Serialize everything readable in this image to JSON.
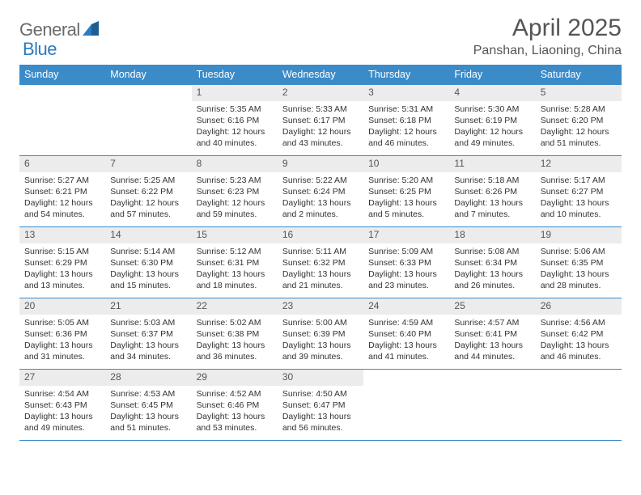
{
  "brand": {
    "word1": "General",
    "word2": "Blue"
  },
  "title": "April 2025",
  "location": "Panshan, Liaoning, China",
  "colors": {
    "header_bg": "#3b8bc9",
    "header_text": "#ffffff",
    "daynum_bg": "#ececec",
    "border": "#3b8bc9",
    "logo_gray": "#6b6b6b",
    "logo_blue": "#2a7bbf"
  },
  "weekdays": [
    "Sunday",
    "Monday",
    "Tuesday",
    "Wednesday",
    "Thursday",
    "Friday",
    "Saturday"
  ],
  "weeks": [
    [
      {
        "n": "",
        "sr": "",
        "ss": "",
        "dl": ""
      },
      {
        "n": "",
        "sr": "",
        "ss": "",
        "dl": ""
      },
      {
        "n": "1",
        "sr": "Sunrise: 5:35 AM",
        "ss": "Sunset: 6:16 PM",
        "dl": "Daylight: 12 hours and 40 minutes."
      },
      {
        "n": "2",
        "sr": "Sunrise: 5:33 AM",
        "ss": "Sunset: 6:17 PM",
        "dl": "Daylight: 12 hours and 43 minutes."
      },
      {
        "n": "3",
        "sr": "Sunrise: 5:31 AM",
        "ss": "Sunset: 6:18 PM",
        "dl": "Daylight: 12 hours and 46 minutes."
      },
      {
        "n": "4",
        "sr": "Sunrise: 5:30 AM",
        "ss": "Sunset: 6:19 PM",
        "dl": "Daylight: 12 hours and 49 minutes."
      },
      {
        "n": "5",
        "sr": "Sunrise: 5:28 AM",
        "ss": "Sunset: 6:20 PM",
        "dl": "Daylight: 12 hours and 51 minutes."
      }
    ],
    [
      {
        "n": "6",
        "sr": "Sunrise: 5:27 AM",
        "ss": "Sunset: 6:21 PM",
        "dl": "Daylight: 12 hours and 54 minutes."
      },
      {
        "n": "7",
        "sr": "Sunrise: 5:25 AM",
        "ss": "Sunset: 6:22 PM",
        "dl": "Daylight: 12 hours and 57 minutes."
      },
      {
        "n": "8",
        "sr": "Sunrise: 5:23 AM",
        "ss": "Sunset: 6:23 PM",
        "dl": "Daylight: 12 hours and 59 minutes."
      },
      {
        "n": "9",
        "sr": "Sunrise: 5:22 AM",
        "ss": "Sunset: 6:24 PM",
        "dl": "Daylight: 13 hours and 2 minutes."
      },
      {
        "n": "10",
        "sr": "Sunrise: 5:20 AM",
        "ss": "Sunset: 6:25 PM",
        "dl": "Daylight: 13 hours and 5 minutes."
      },
      {
        "n": "11",
        "sr": "Sunrise: 5:18 AM",
        "ss": "Sunset: 6:26 PM",
        "dl": "Daylight: 13 hours and 7 minutes."
      },
      {
        "n": "12",
        "sr": "Sunrise: 5:17 AM",
        "ss": "Sunset: 6:27 PM",
        "dl": "Daylight: 13 hours and 10 minutes."
      }
    ],
    [
      {
        "n": "13",
        "sr": "Sunrise: 5:15 AM",
        "ss": "Sunset: 6:29 PM",
        "dl": "Daylight: 13 hours and 13 minutes."
      },
      {
        "n": "14",
        "sr": "Sunrise: 5:14 AM",
        "ss": "Sunset: 6:30 PM",
        "dl": "Daylight: 13 hours and 15 minutes."
      },
      {
        "n": "15",
        "sr": "Sunrise: 5:12 AM",
        "ss": "Sunset: 6:31 PM",
        "dl": "Daylight: 13 hours and 18 minutes."
      },
      {
        "n": "16",
        "sr": "Sunrise: 5:11 AM",
        "ss": "Sunset: 6:32 PM",
        "dl": "Daylight: 13 hours and 21 minutes."
      },
      {
        "n": "17",
        "sr": "Sunrise: 5:09 AM",
        "ss": "Sunset: 6:33 PM",
        "dl": "Daylight: 13 hours and 23 minutes."
      },
      {
        "n": "18",
        "sr": "Sunrise: 5:08 AM",
        "ss": "Sunset: 6:34 PM",
        "dl": "Daylight: 13 hours and 26 minutes."
      },
      {
        "n": "19",
        "sr": "Sunrise: 5:06 AM",
        "ss": "Sunset: 6:35 PM",
        "dl": "Daylight: 13 hours and 28 minutes."
      }
    ],
    [
      {
        "n": "20",
        "sr": "Sunrise: 5:05 AM",
        "ss": "Sunset: 6:36 PM",
        "dl": "Daylight: 13 hours and 31 minutes."
      },
      {
        "n": "21",
        "sr": "Sunrise: 5:03 AM",
        "ss": "Sunset: 6:37 PM",
        "dl": "Daylight: 13 hours and 34 minutes."
      },
      {
        "n": "22",
        "sr": "Sunrise: 5:02 AM",
        "ss": "Sunset: 6:38 PM",
        "dl": "Daylight: 13 hours and 36 minutes."
      },
      {
        "n": "23",
        "sr": "Sunrise: 5:00 AM",
        "ss": "Sunset: 6:39 PM",
        "dl": "Daylight: 13 hours and 39 minutes."
      },
      {
        "n": "24",
        "sr": "Sunrise: 4:59 AM",
        "ss": "Sunset: 6:40 PM",
        "dl": "Daylight: 13 hours and 41 minutes."
      },
      {
        "n": "25",
        "sr": "Sunrise: 4:57 AM",
        "ss": "Sunset: 6:41 PM",
        "dl": "Daylight: 13 hours and 44 minutes."
      },
      {
        "n": "26",
        "sr": "Sunrise: 4:56 AM",
        "ss": "Sunset: 6:42 PM",
        "dl": "Daylight: 13 hours and 46 minutes."
      }
    ],
    [
      {
        "n": "27",
        "sr": "Sunrise: 4:54 AM",
        "ss": "Sunset: 6:43 PM",
        "dl": "Daylight: 13 hours and 49 minutes."
      },
      {
        "n": "28",
        "sr": "Sunrise: 4:53 AM",
        "ss": "Sunset: 6:45 PM",
        "dl": "Daylight: 13 hours and 51 minutes."
      },
      {
        "n": "29",
        "sr": "Sunrise: 4:52 AM",
        "ss": "Sunset: 6:46 PM",
        "dl": "Daylight: 13 hours and 53 minutes."
      },
      {
        "n": "30",
        "sr": "Sunrise: 4:50 AM",
        "ss": "Sunset: 6:47 PM",
        "dl": "Daylight: 13 hours and 56 minutes."
      },
      {
        "n": "",
        "sr": "",
        "ss": "",
        "dl": ""
      },
      {
        "n": "",
        "sr": "",
        "ss": "",
        "dl": ""
      },
      {
        "n": "",
        "sr": "",
        "ss": "",
        "dl": ""
      }
    ]
  ]
}
